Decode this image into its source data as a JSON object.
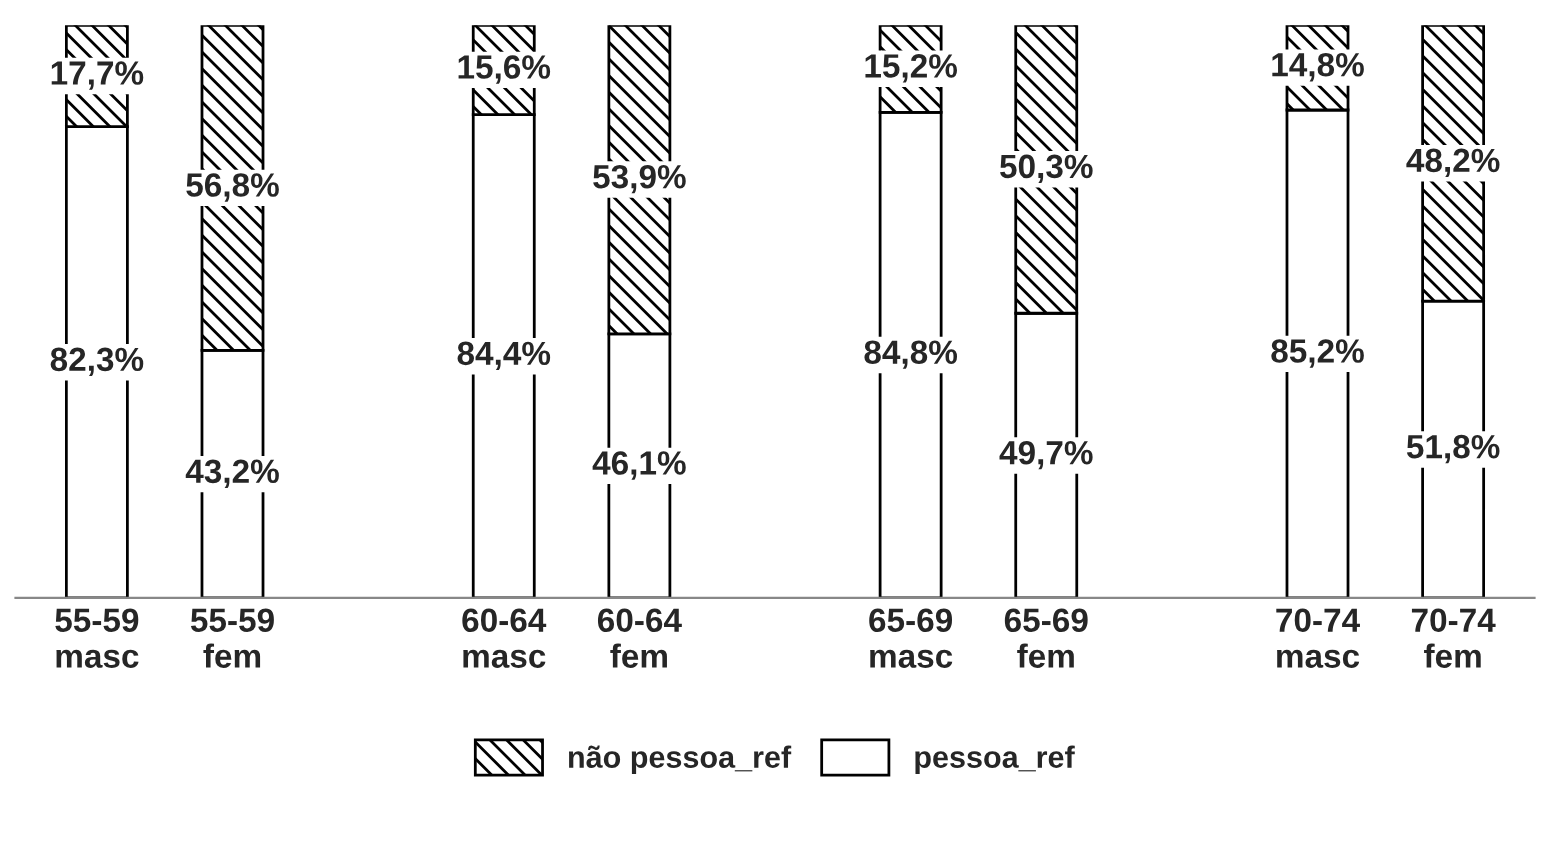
{
  "chart_data": {
    "type": "bar",
    "stacked": true,
    "categories": [
      "55-59\nmasc",
      "55-59\nfem",
      null,
      "60-64\nmasc",
      "60-64\nfem",
      null,
      "65-69\nmasc",
      "65-69\nfem",
      null,
      "70-74\nmasc",
      "70-74\nfem"
    ],
    "series": [
      {
        "name": "pessoa_ref",
        "color": "#ffffff",
        "values": [
          82.3,
          43.2,
          null,
          84.4,
          46.1,
          null,
          84.8,
          49.7,
          null,
          85.2,
          51.8
        ],
        "value_labels": [
          "82,3%",
          "43,2%",
          null,
          "84,4%",
          "46,1%",
          null,
          "84,8%",
          "49,7%",
          null,
          "85,2%",
          "51,8%"
        ]
      },
      {
        "name": "não pessoa_ref",
        "color": "#000000",
        "values": [
          17.7,
          56.8,
          null,
          15.6,
          53.9,
          null,
          15.2,
          50.3,
          null,
          14.8,
          48.2
        ],
        "value_labels": [
          "17,7%",
          "56,8%",
          null,
          "15,6%",
          "53,9%",
          null,
          "15,2%",
          "50,3%",
          null,
          "14,8%",
          "48,2%"
        ]
      }
    ],
    "tick_labels": "x",
    "legend": "bottom"
  }
}
